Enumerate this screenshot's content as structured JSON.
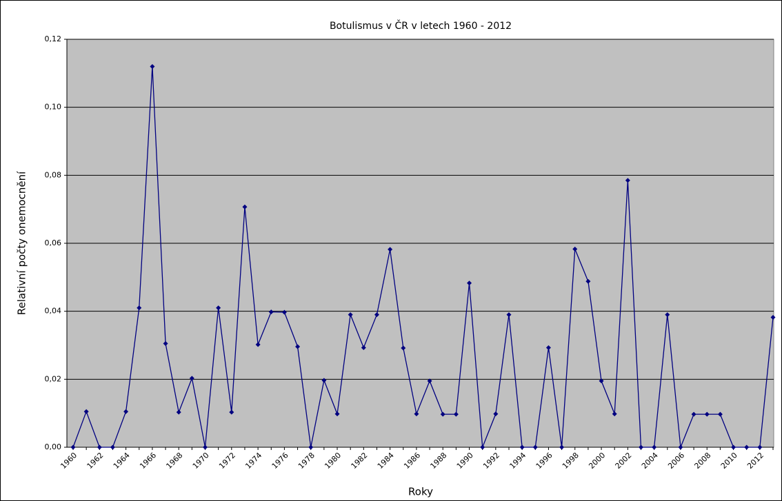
{
  "chart_data": {
    "type": "line",
    "title": "Botulismus v ČR v letech 1960 - 2012",
    "x_label": "Roky",
    "y_label": "Relativní počty onemocnění",
    "categories": [
      "1960",
      null,
      "1962",
      null,
      "1964",
      null,
      "1966",
      null,
      "1968",
      null,
      "1970",
      null,
      "1972",
      null,
      "1974",
      null,
      "1976",
      null,
      "1978",
      null,
      "1980",
      null,
      "1982",
      null,
      "1984",
      null,
      "1986",
      null,
      "1988",
      null,
      "1990",
      null,
      "1992",
      null,
      "1994",
      null,
      "1996",
      null,
      "1998",
      null,
      "2000",
      null,
      "2002",
      null,
      "2004",
      null,
      "2006",
      null,
      "2008",
      null,
      "2010",
      null,
      "2012",
      null
    ],
    "series": [
      {
        "name": "Botulismus",
        "color": "#000080",
        "values": [
          0,
          0.0105,
          0,
          0,
          0.0105,
          0.041,
          0.112,
          0.0305,
          0.0103,
          0.0203,
          0,
          0.041,
          0.0103,
          0.0707,
          0.0302,
          0.0398,
          0.0397,
          0.0296,
          0,
          0.0197,
          0.0098,
          0.039,
          0.0293,
          0.039,
          0.0582,
          0.0292,
          0.0098,
          0.0195,
          0.0097,
          0.0097,
          0.0483,
          0,
          0.0098,
          0.039,
          0,
          0,
          0.0293,
          0,
          0.0583,
          0.0488,
          0.0195,
          0.0098,
          0.0785,
          0,
          0,
          0.039,
          0,
          0.0097,
          0.0097,
          0.0097,
          0,
          0,
          0,
          0.0382
        ]
      }
    ],
    "ylim": [
      0,
      0.12
    ],
    "yticks": [
      {
        "value": 0,
        "label": "0,00"
      },
      {
        "value": 0.02,
        "label": "0,02"
      },
      {
        "value": 0.04,
        "label": "0,04"
      },
      {
        "value": 0.06,
        "label": "0,06"
      },
      {
        "value": 0.08,
        "label": "0,08"
      },
      {
        "value": 0.1,
        "label": "0,10"
      },
      {
        "value": 0.12,
        "label": "0,12"
      }
    ],
    "grid": true,
    "plot_background": "#c0c0c0"
  }
}
